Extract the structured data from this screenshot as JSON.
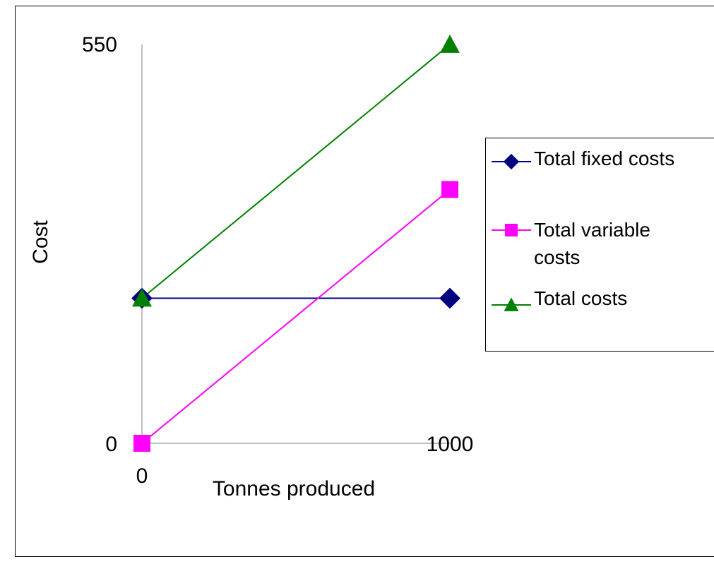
{
  "chart_data": {
    "type": "line",
    "title": "",
    "xlabel": "Tonnes produced",
    "ylabel": "Cost",
    "x": [
      0,
      1000
    ],
    "xlim": [
      0,
      1000
    ],
    "ylim": [
      0,
      550
    ],
    "x_tick_labels": [
      "0",
      "1000"
    ],
    "y_tick_labels": [
      "0",
      "550"
    ],
    "grid": false,
    "legend_position": "right",
    "series": [
      {
        "name": "Total fixed costs",
        "values": [
          200,
          200
        ],
        "color": "#000080",
        "marker": "diamond"
      },
      {
        "name": "Total variable costs",
        "values": [
          0,
          350
        ],
        "color": "#ff00ff",
        "marker": "square"
      },
      {
        "name": "Total costs",
        "values": [
          200,
          550
        ],
        "color": "#008000",
        "marker": "triangle"
      }
    ]
  }
}
